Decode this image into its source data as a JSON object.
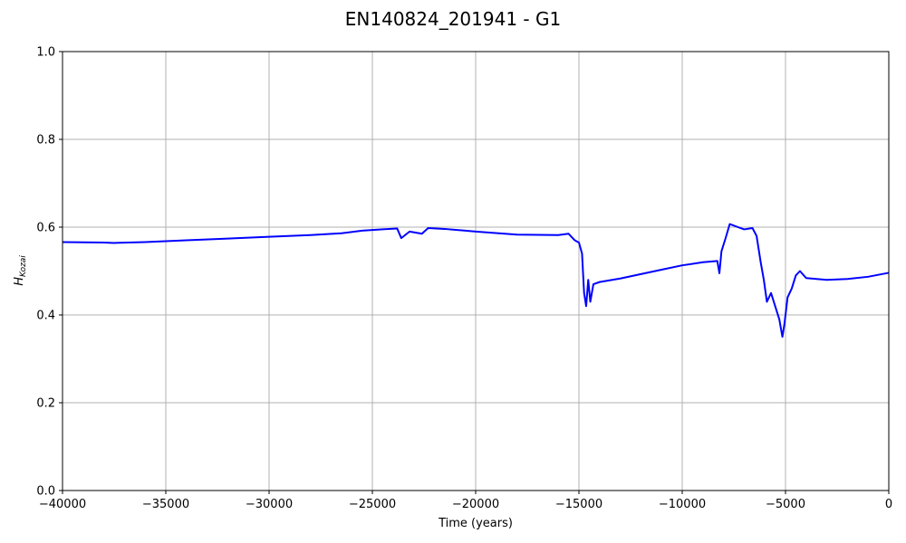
{
  "chart_data": {
    "type": "line",
    "title": "EN140824_201941 - G1",
    "xlabel": "Time (years)",
    "ylabel_main": "H",
    "ylabel_sub": "Kozai",
    "xlim": [
      -40000,
      0
    ],
    "ylim": [
      0.0,
      1.0
    ],
    "grid": true,
    "x_ticks": [
      {
        "value": -40000,
        "label": "−40000"
      },
      {
        "value": -35000,
        "label": "−35000"
      },
      {
        "value": -30000,
        "label": "−30000"
      },
      {
        "value": -25000,
        "label": "−25000"
      },
      {
        "value": -20000,
        "label": "−20000"
      },
      {
        "value": -15000,
        "label": "−15000"
      },
      {
        "value": -10000,
        "label": "−10000"
      },
      {
        "value": -5000,
        "label": "−5000"
      },
      {
        "value": 0,
        "label": "0"
      }
    ],
    "y_ticks": [
      {
        "value": 0.0,
        "label": "0.0"
      },
      {
        "value": 0.2,
        "label": "0.2"
      },
      {
        "value": 0.4,
        "label": "0.4"
      },
      {
        "value": 0.6,
        "label": "0.6"
      },
      {
        "value": 0.8,
        "label": "0.8"
      },
      {
        "value": 1.0,
        "label": "1.0"
      }
    ],
    "series": [
      {
        "name": "H_Kozai",
        "color": "#0000ff",
        "points": [
          [
            -40000,
            0.566
          ],
          [
            -38000,
            0.565
          ],
          [
            -37500,
            0.564
          ],
          [
            -36000,
            0.566
          ],
          [
            -34000,
            0.57
          ],
          [
            -32000,
            0.574
          ],
          [
            -30000,
            0.578
          ],
          [
            -28000,
            0.582
          ],
          [
            -26500,
            0.586
          ],
          [
            -25500,
            0.592
          ],
          [
            -24500,
            0.595
          ],
          [
            -23800,
            0.597
          ],
          [
            -23600,
            0.575
          ],
          [
            -23200,
            0.59
          ],
          [
            -22600,
            0.585
          ],
          [
            -22300,
            0.598
          ],
          [
            -21500,
            0.596
          ],
          [
            -20000,
            0.59
          ],
          [
            -18000,
            0.583
          ],
          [
            -16000,
            0.582
          ],
          [
            -15500,
            0.585
          ],
          [
            -15200,
            0.57
          ],
          [
            -15000,
            0.565
          ],
          [
            -14850,
            0.54
          ],
          [
            -14750,
            0.45
          ],
          [
            -14650,
            0.42
          ],
          [
            -14550,
            0.48
          ],
          [
            -14450,
            0.43
          ],
          [
            -14300,
            0.47
          ],
          [
            -14000,
            0.475
          ],
          [
            -13000,
            0.483
          ],
          [
            -12000,
            0.493
          ],
          [
            -11000,
            0.503
          ],
          [
            -10000,
            0.513
          ],
          [
            -9000,
            0.52
          ],
          [
            -8300,
            0.523
          ],
          [
            -8200,
            0.495
          ],
          [
            -8100,
            0.545
          ],
          [
            -7900,
            0.575
          ],
          [
            -7700,
            0.607
          ],
          [
            -7300,
            0.6
          ],
          [
            -7000,
            0.595
          ],
          [
            -6600,
            0.598
          ],
          [
            -6400,
            0.58
          ],
          [
            -6200,
            0.52
          ],
          [
            -6050,
            0.48
          ],
          [
            -5900,
            0.43
          ],
          [
            -5700,
            0.45
          ],
          [
            -5500,
            0.42
          ],
          [
            -5300,
            0.39
          ],
          [
            -5150,
            0.35
          ],
          [
            -5050,
            0.38
          ],
          [
            -4900,
            0.44
          ],
          [
            -4700,
            0.46
          ],
          [
            -4500,
            0.49
          ],
          [
            -4300,
            0.5
          ],
          [
            -4000,
            0.484
          ],
          [
            -3000,
            0.48
          ],
          [
            -2000,
            0.482
          ],
          [
            -1000,
            0.487
          ],
          [
            0,
            0.496
          ]
        ]
      }
    ]
  }
}
